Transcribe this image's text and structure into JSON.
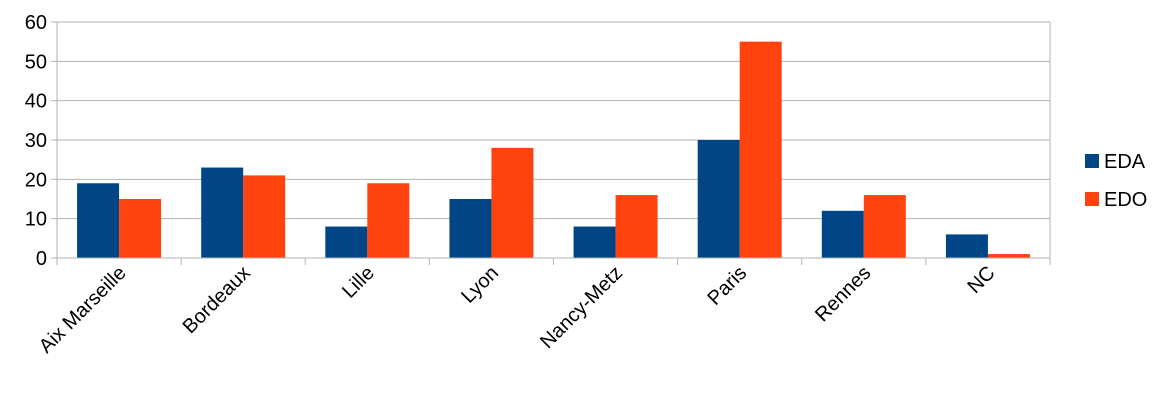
{
  "chart_data": {
    "type": "bar",
    "title": "",
    "xlabel": "",
    "ylabel": "",
    "categories": [
      "Aix Marseille",
      "Bordeaux",
      "Lille",
      "Lyon",
      "Nancy-Metz",
      "Paris",
      "Rennes",
      "NC"
    ],
    "series": [
      {
        "name": "EDA",
        "color": "#004586",
        "values": [
          19,
          23,
          8,
          15,
          8,
          30,
          12,
          6
        ]
      },
      {
        "name": "EDO",
        "color": "#ff420e",
        "values": [
          15,
          21,
          19,
          28,
          16,
          55,
          16,
          1
        ]
      }
    ],
    "ylim": [
      0,
      60
    ],
    "yticks": [
      0,
      10,
      20,
      30,
      40,
      50,
      60
    ],
    "grid": true,
    "legend_position": "right"
  }
}
